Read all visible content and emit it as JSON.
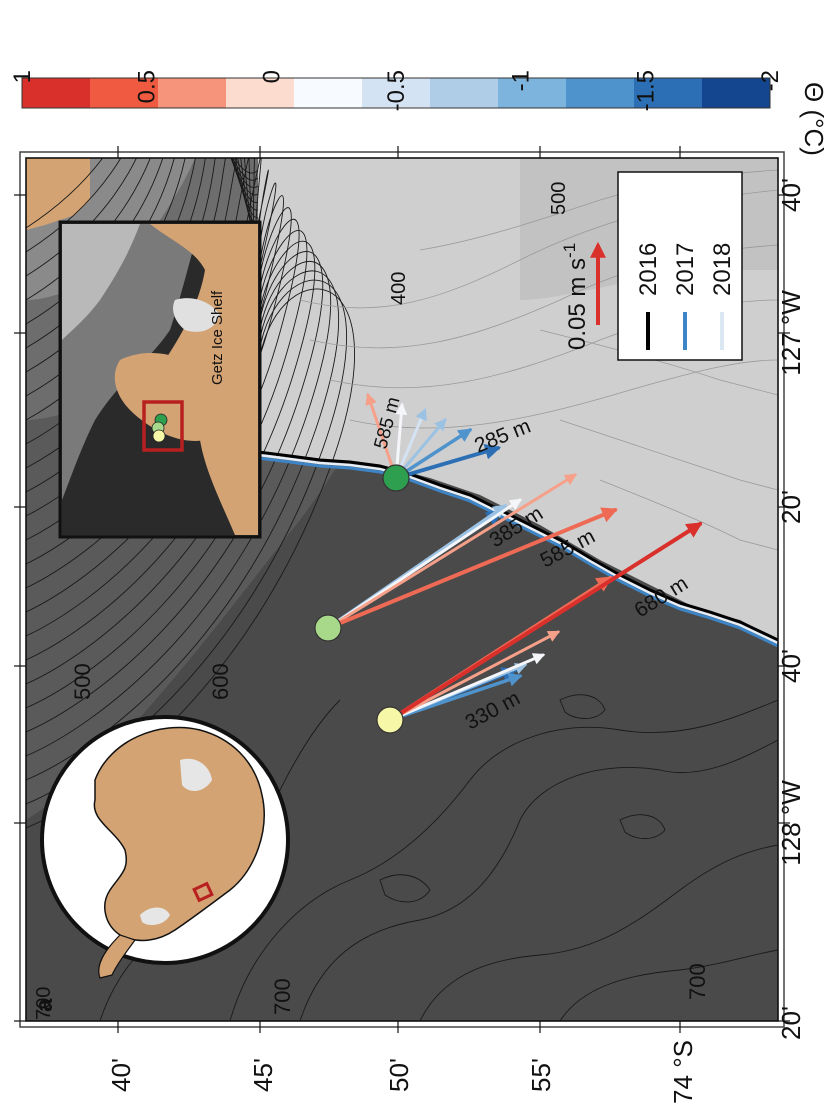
{
  "panel_label": "a",
  "colorbar": {
    "ticks": [
      "1",
      "0.5",
      "0",
      "-0.5",
      "-1",
      "-1.5",
      "-2"
    ],
    "label": "Θ (°C)",
    "colors": [
      "#d9302b",
      "#ef5a40",
      "#f6937b",
      "#fddcd0",
      "#f7fbff",
      "#d4e3f3",
      "#b0cde8",
      "#7db4dd",
      "#4f93cc",
      "#2c6fb5",
      "#14468f"
    ]
  },
  "axes": {
    "lon_ticks": [
      "20'",
      "128 °W",
      "40'",
      "20'",
      "127 °W",
      "40'"
    ],
    "lat_ticks": [
      "40'",
      "45'",
      "50'",
      "55'",
      "74 °S"
    ]
  },
  "contours": {
    "labels": [
      "500",
      "600",
      "700",
      "700",
      "700",
      "400",
      "500"
    ]
  },
  "legend": {
    "scale_label": "0.05 m s",
    "scale_exp": "-1",
    "years": [
      {
        "label": "2016",
        "color": "#000000"
      },
      {
        "label": "2017",
        "color": "#3d85c6"
      },
      {
        "label": "2018",
        "color": "#dbe7f3"
      }
    ]
  },
  "moorings": [
    {
      "name": "yellow",
      "color": "#f7f7a8"
    },
    {
      "name": "light-green",
      "color": "#a8d98a"
    },
    {
      "name": "dark-green",
      "color": "#2e9e4f"
    }
  ],
  "depth_labels": [
    "330 m",
    "385 m",
    "585 m",
    "680 m",
    "285 m",
    "585 m"
  ],
  "inset": {
    "label": "Getz Ice Shelf"
  }
}
